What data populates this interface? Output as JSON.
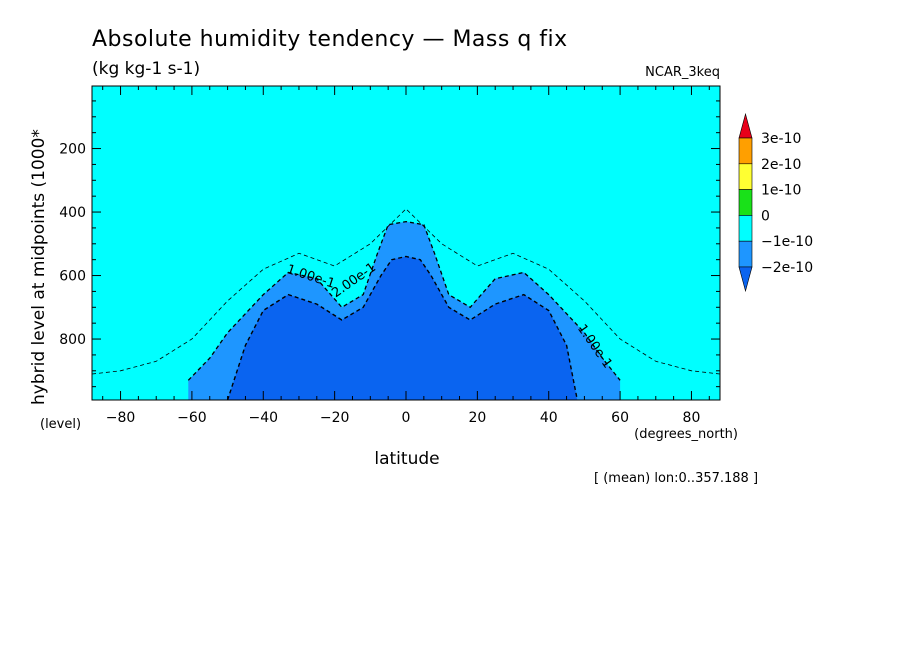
{
  "chart_data": {
    "type": "heatmap",
    "title": "Absolute humidity tendency — Mass q fix",
    "units": "(kg kg-1 s-1)",
    "dataset": "NCAR_3keq",
    "xlabel": "latitude",
    "xunits": "(degrees_north)",
    "ylabel": "hybrid level at midpoints (1000*",
    "yunits": "(level)",
    "footer": "[ (mean) lon:0..357.188 ]",
    "xlim": [
      -88,
      88
    ],
    "ylim": [
      992,
      3
    ],
    "x_ticks": [
      -80,
      -60,
      -40,
      -20,
      0,
      20,
      40,
      60,
      80
    ],
    "y_ticks": [
      200,
      400,
      600,
      800
    ],
    "colorbar": {
      "labels": [
        "3e-10",
        "2e-10",
        "1e-10",
        "0",
        "−1e-10",
        "−2e-10"
      ],
      "colors": [
        "#e8001a",
        "#ff9f00",
        "#ffff32",
        "#19e119",
        "#00ffff",
        "#1e96ff",
        "#0a64f0"
      ]
    },
    "contour_labels": [
      "1.00e-1",
      "2.00e-1",
      "1.00e-1"
    ],
    "series": [
      {
        "name": "-1e-10 contour (dashed)",
        "x": [
          -88,
          -80,
          -70,
          -60,
          -50,
          -40,
          -30,
          -20,
          -10,
          0,
          10,
          20,
          30,
          40,
          50,
          60,
          70,
          80,
          88
        ],
        "y": [
          910,
          900,
          870,
          800,
          680,
          580,
          530,
          570,
          500,
          390,
          500,
          570,
          530,
          580,
          680,
          800,
          870,
          900,
          910
        ]
      },
      {
        "name": "-1.5e-10 region boundary",
        "x": [
          -61,
          -55,
          -50,
          -40,
          -33,
          -25,
          -18,
          -12,
          -8,
          -5,
          0,
          5,
          8,
          12,
          18,
          25,
          33,
          40,
          50,
          55,
          60
        ],
        "y": [
          930,
          860,
          780,
          660,
          590,
          610,
          700,
          660,
          530,
          440,
          430,
          440,
          530,
          660,
          700,
          610,
          590,
          660,
          780,
          860,
          930
        ]
      },
      {
        "name": "-2e-10 region boundary",
        "x": [
          -50,
          -45,
          -40,
          -33,
          -25,
          -18,
          -12,
          -7,
          -4,
          0,
          4,
          7,
          12,
          18,
          25,
          33,
          40,
          45,
          48
        ],
        "y": [
          992,
          820,
          710,
          660,
          690,
          740,
          700,
          600,
          550,
          540,
          550,
          600,
          700,
          740,
          690,
          660,
          710,
          820,
          992
        ]
      }
    ]
  }
}
